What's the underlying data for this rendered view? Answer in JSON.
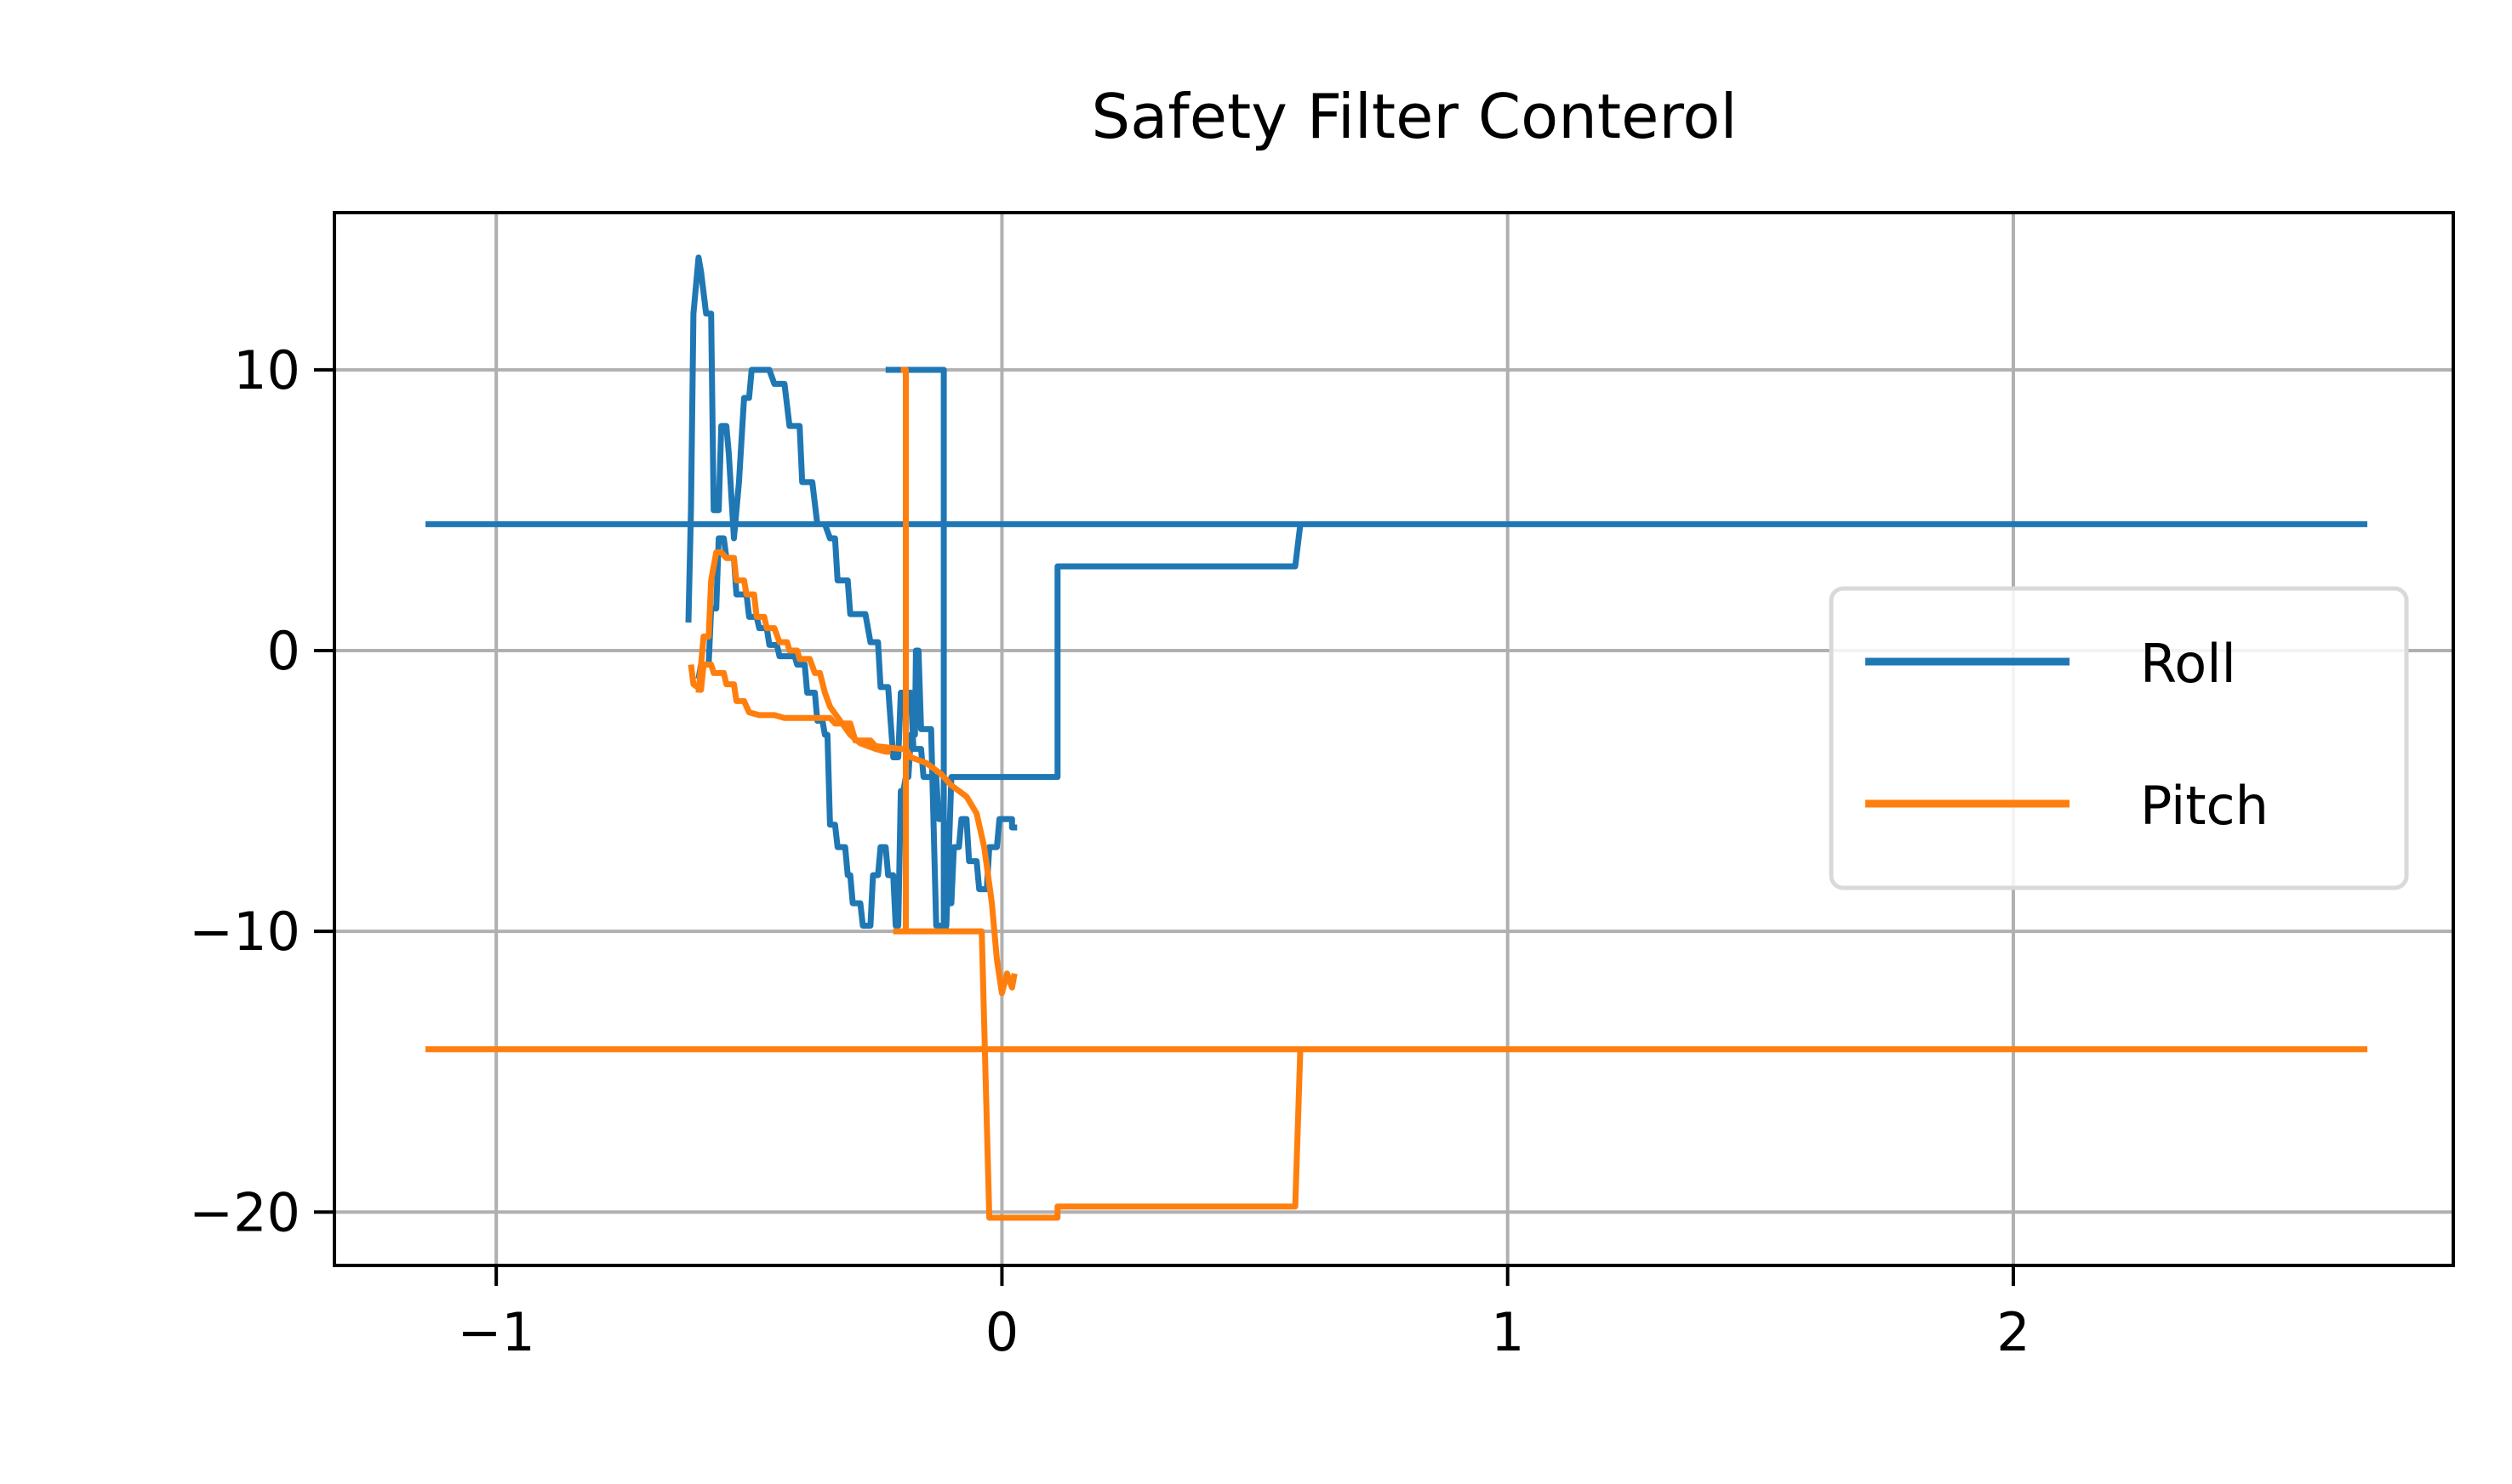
{
  "chart_data": {
    "type": "line",
    "title": "Safety Filter Conterol",
    "xlabel": "",
    "ylabel": "",
    "xlim": [
      -1.32,
      2.87
    ],
    "ylim": [
      -21.9,
      15.6
    ],
    "xticks": [
      -1,
      0,
      1,
      2
    ],
    "xtick_labels": [
      "−1",
      "0",
      "1",
      "2"
    ],
    "yticks": [
      -20,
      -10,
      0,
      10
    ],
    "ytick_labels": [
      "−20",
      "−10",
      "0",
      "10"
    ],
    "grid": true,
    "legend": {
      "position": "center-right",
      "entries": [
        "Roll",
        "Pitch"
      ]
    },
    "series": [
      {
        "name": "Roll",
        "color": "#1f77b4",
        "points": [
          [
            -1.14,
            4.5
          ],
          [
            2.7,
            4.5
          ],
          null,
          [
            -0.62,
            1
          ],
          [
            -0.615,
            5
          ],
          [
            -0.61,
            12
          ],
          [
            -0.6,
            14
          ],
          [
            -0.595,
            13.5
          ],
          [
            -0.585,
            12
          ],
          [
            -0.575,
            12
          ],
          [
            -0.57,
            5
          ],
          [
            -0.56,
            5
          ],
          [
            -0.555,
            8
          ],
          [
            -0.545,
            8
          ],
          [
            -0.54,
            7
          ],
          [
            -0.53,
            4
          ],
          [
            -0.52,
            6
          ],
          [
            -0.51,
            9
          ],
          [
            -0.5,
            9
          ],
          [
            -0.495,
            10
          ],
          [
            -0.46,
            10
          ],
          [
            -0.45,
            9.5
          ],
          [
            -0.43,
            9.5
          ],
          [
            -0.42,
            8
          ],
          [
            -0.4,
            8
          ],
          [
            -0.395,
            6
          ],
          [
            -0.375,
            6
          ],
          [
            -0.365,
            4.5
          ],
          [
            -0.35,
            4.5
          ],
          [
            -0.34,
            4
          ],
          [
            -0.33,
            4
          ],
          [
            -0.325,
            2.5
          ],
          [
            -0.305,
            2.5
          ],
          [
            -0.3,
            1.3
          ],
          [
            -0.27,
            1.3
          ],
          [
            -0.26,
            0.3
          ],
          [
            -0.245,
            0.3
          ],
          [
            -0.24,
            -1.3
          ],
          [
            -0.225,
            -1.3
          ],
          [
            -0.215,
            -3.8
          ],
          [
            -0.205,
            -3.8
          ],
          [
            -0.2,
            -1.5
          ],
          [
            -0.18,
            -1.5
          ],
          [
            -0.175,
            -3.5
          ],
          [
            -0.16,
            -3.5
          ],
          [
            -0.155,
            -4.5
          ],
          [
            -0.13,
            -4.5
          ],
          [
            -0.125,
            -6
          ],
          [
            -0.115,
            -6
          ],
          [
            -0.11,
            -9
          ],
          [
            -0.1,
            -9
          ],
          [
            -0.095,
            -7
          ],
          [
            -0.085,
            -7
          ],
          [
            -0.08,
            -6
          ],
          [
            -0.07,
            -6
          ],
          [
            -0.065,
            -7.5
          ],
          [
            -0.05,
            -7.5
          ],
          [
            -0.045,
            -8.5
          ],
          [
            -0.03,
            -8.5
          ],
          [
            -0.025,
            -7
          ],
          [
            -0.01,
            -7
          ],
          [
            -0.005,
            -6
          ],
          [
            0.02,
            -6
          ],
          [
            0.02,
            -6.3
          ],
          [
            0.03,
            -6.3
          ],
          null,
          [
            -0.6,
            -1
          ],
          [
            -0.595,
            -0.5
          ],
          [
            -0.58,
            -0.5
          ],
          [
            -0.575,
            1.5
          ],
          [
            -0.565,
            1.5
          ],
          [
            -0.56,
            4
          ],
          [
            -0.55,
            4
          ],
          [
            -0.545,
            3.3
          ],
          [
            -0.53,
            3.3
          ],
          [
            -0.525,
            2
          ],
          [
            -0.505,
            2
          ],
          [
            -0.5,
            1.2
          ],
          [
            -0.485,
            1.2
          ],
          [
            -0.48,
            0.8
          ],
          [
            -0.465,
            0.8
          ],
          [
            -0.46,
            0.2
          ],
          [
            -0.445,
            0.2
          ],
          [
            -0.44,
            -0.2
          ],
          [
            -0.41,
            -0.2
          ],
          [
            -0.405,
            -0.5
          ],
          [
            -0.39,
            -0.5
          ],
          [
            -0.385,
            -1.5
          ],
          [
            -0.37,
            -1.5
          ],
          [
            -0.365,
            -2.5
          ],
          [
            -0.355,
            -2.5
          ],
          [
            -0.35,
            -3
          ],
          [
            -0.345,
            -3
          ],
          [
            -0.34,
            -6.2
          ],
          [
            -0.33,
            -6.2
          ],
          [
            -0.325,
            -7
          ],
          [
            -0.31,
            -7
          ],
          [
            -0.305,
            -8
          ],
          [
            -0.3,
            -8
          ],
          [
            -0.295,
            -9
          ],
          [
            -0.28,
            -9
          ],
          [
            -0.275,
            -9.8
          ],
          [
            -0.26,
            -9.8
          ],
          [
            -0.255,
            -8
          ],
          [
            -0.245,
            -8
          ],
          [
            -0.24,
            -7
          ],
          [
            -0.23,
            -7
          ],
          [
            -0.225,
            -8
          ],
          [
            -0.215,
            -8
          ],
          [
            -0.21,
            -9.8
          ],
          [
            -0.205,
            -9.8
          ],
          [
            -0.2,
            -5
          ],
          [
            -0.195,
            -5
          ],
          [
            -0.19,
            -4.5
          ],
          [
            -0.185,
            -4.5
          ],
          [
            -0.18,
            -3
          ],
          [
            -0.172,
            -3
          ],
          [
            -0.17,
            0
          ],
          [
            -0.165,
            0
          ],
          [
            -0.16,
            -2.8
          ],
          [
            -0.14,
            -2.8
          ],
          [
            -0.13,
            -9.8
          ],
          [
            -0.11,
            -9.8
          ],
          [
            -0.1,
            -4.5
          ],
          [
            0.11,
            -4.5
          ],
          [
            0.11,
            3
          ],
          [
            0.57,
            3
          ],
          [
            0.58,
            3
          ],
          [
            0.59,
            4.5
          ],
          [
            0.6,
            4.5
          ],
          null,
          [
            -0.23,
            10
          ],
          [
            -0.115,
            10
          ],
          [
            -0.115,
            -9.9
          ],
          [
            -0.105,
            -9.9
          ]
        ]
      },
      {
        "name": "Pitch",
        "color": "#ff7f0e",
        "points": [
          [
            -1.14,
            -14.2
          ],
          [
            2.7,
            -14.2
          ],
          null,
          [
            -0.615,
            -0.5
          ],
          [
            -0.61,
            -1.2
          ],
          [
            -0.595,
            -1.4
          ],
          [
            -0.59,
            -0.5
          ],
          [
            -0.575,
            -0.5
          ],
          [
            -0.57,
            -0.8
          ],
          [
            -0.55,
            -0.8
          ],
          [
            -0.545,
            -1.2
          ],
          [
            -0.53,
            -1.2
          ],
          [
            -0.525,
            -1.8
          ],
          [
            -0.51,
            -1.8
          ],
          [
            -0.5,
            -2.2
          ],
          [
            -0.48,
            -2.3
          ],
          [
            -0.45,
            -2.3
          ],
          [
            -0.43,
            -2.4
          ],
          [
            -0.34,
            -2.4
          ],
          [
            -0.33,
            -2.6
          ],
          [
            -0.3,
            -2.6
          ],
          [
            -0.29,
            -3.2
          ],
          [
            -0.26,
            -3.2
          ],
          [
            -0.25,
            -3.4
          ],
          [
            -0.2,
            -3.5
          ],
          [
            -0.19,
            -3.5
          ],
          [
            -0.18,
            -3.8
          ],
          [
            -0.15,
            -4
          ],
          [
            -0.12,
            -4.4
          ],
          [
            -0.1,
            -4.8
          ],
          [
            -0.07,
            -5.2
          ],
          [
            -0.05,
            -5.8
          ],
          [
            -0.035,
            -7
          ],
          [
            -0.02,
            -9
          ],
          [
            -0.01,
            -11
          ],
          [
            0,
            -12.2
          ],
          [
            0.01,
            -11.5
          ],
          [
            0.02,
            -12
          ],
          [
            0.025,
            -11.5
          ],
          null,
          [
            -0.6,
            -1.5
          ],
          [
            -0.59,
            0.5
          ],
          [
            -0.58,
            0.5
          ],
          [
            -0.575,
            2.5
          ],
          [
            -0.565,
            3.5
          ],
          [
            -0.555,
            3.5
          ],
          [
            -0.545,
            3.3
          ],
          [
            -0.53,
            3.3
          ],
          [
            -0.525,
            2.5
          ],
          [
            -0.51,
            2.5
          ],
          [
            -0.505,
            2
          ],
          [
            -0.49,
            2
          ],
          [
            -0.485,
            1.2
          ],
          [
            -0.47,
            1.2
          ],
          [
            -0.465,
            0.8
          ],
          [
            -0.45,
            0.8
          ],
          [
            -0.44,
            0.3
          ],
          [
            -0.425,
            0.3
          ],
          [
            -0.42,
            0
          ],
          [
            -0.405,
            0
          ],
          [
            -0.4,
            -0.3
          ],
          [
            -0.38,
            -0.3
          ],
          [
            -0.37,
            -0.8
          ],
          [
            -0.36,
            -0.8
          ],
          [
            -0.35,
            -1.5
          ],
          [
            -0.34,
            -2
          ],
          [
            -0.32,
            -2.5
          ],
          [
            -0.3,
            -3
          ],
          [
            -0.28,
            -3.3
          ],
          [
            -0.25,
            -3.5
          ],
          [
            -0.23,
            -3.6
          ],
          [
            -0.22,
            -3.6
          ],
          null,
          [
            -0.2,
            10
          ],
          [
            -0.19,
            10
          ],
          [
            -0.19,
            -10
          ],
          [
            -0.05,
            -10
          ],
          [
            -0.04,
            -10
          ],
          [
            -0.025,
            -20.2
          ],
          [
            0.11,
            -20.2
          ],
          [
            0.11,
            -19.8
          ],
          [
            0.58,
            -19.8
          ],
          [
            0.59,
            -14.2
          ],
          [
            0.6,
            -14.2
          ],
          null,
          [
            -0.215,
            -10
          ],
          [
            -0.19,
            -10
          ]
        ]
      }
    ]
  }
}
